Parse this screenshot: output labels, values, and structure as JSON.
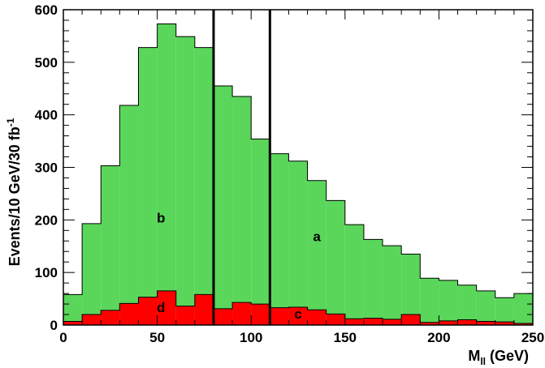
{
  "chart_data": {
    "type": "bar",
    "x_unit": "GeV",
    "bin_width": 10,
    "bin_low_edges": [
      0,
      10,
      20,
      30,
      40,
      50,
      60,
      70,
      80,
      90,
      100,
      110,
      120,
      130,
      140,
      150,
      160,
      170,
      180,
      190,
      200,
      210,
      220,
      230,
      240
    ],
    "series": [
      {
        "values": [
          58,
          193,
          303,
          418,
          528,
          573,
          549,
          528,
          455,
          435,
          354,
          326,
          312,
          275,
          237,
          191,
          163,
          151,
          135,
          89,
          85,
          76,
          65,
          52,
          60
        ],
        "color": "#5ad65a"
      },
      {
        "values": [
          7,
          20,
          28,
          41,
          53,
          65,
          36,
          58,
          31,
          43,
          40,
          33,
          34,
          29,
          21,
          12,
          13,
          11,
          20,
          5,
          8,
          10,
          7,
          6,
          3
        ],
        "color": "#ff0000"
      }
    ],
    "vertical_lines": [
      80,
      110
    ],
    "xlim": [
      0,
      250
    ],
    "ylim": [
      0,
      600
    ],
    "x_ticks": [
      0,
      50,
      100,
      150,
      200,
      250
    ],
    "y_ticks": [
      0,
      100,
      200,
      300,
      400,
      500,
      600
    ],
    "xlabel_main": "M",
    "xlabel_sub": "ll",
    "xlabel_unit": "(GeV)",
    "ylabel_main": "Events/10 GeV/30 fb",
    "ylabel_sup": "-1",
    "region_labels": [
      {
        "text": "b",
        "x": 52,
        "y": 195
      },
      {
        "text": "a",
        "x": 135,
        "y": 160
      },
      {
        "text": "d",
        "x": 52,
        "y": 25
      },
      {
        "text": "c",
        "x": 125,
        "y": 12
      }
    ],
    "grid": false
  }
}
